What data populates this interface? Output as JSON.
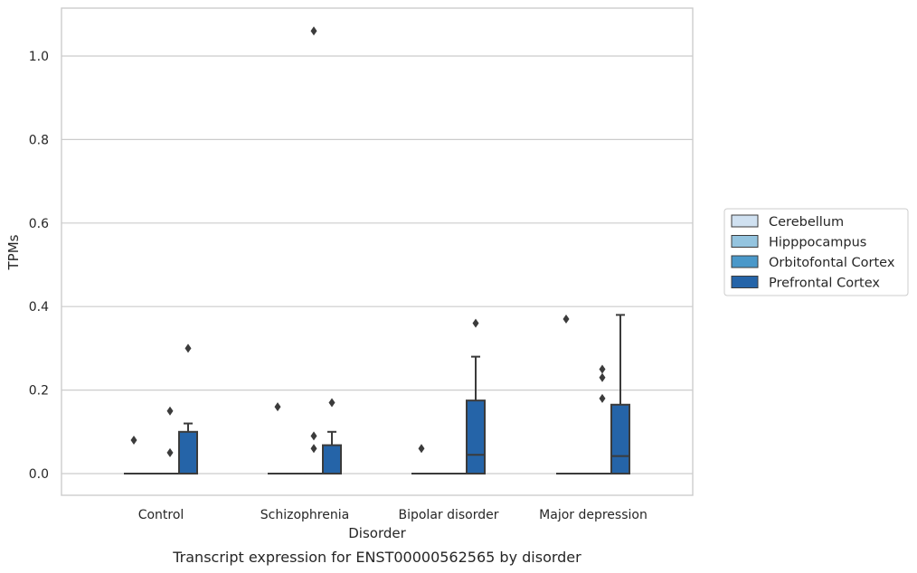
{
  "chart_data": {
    "type": "box",
    "caption": "Transcript expression for ENST00000562565 by disorder",
    "xlabel": "Disorder",
    "ylabel": "TPMs",
    "ylim": [
      -0.05,
      1.12
    ],
    "yticks": [
      0.0,
      0.2,
      0.4,
      0.6,
      0.8,
      1.0
    ],
    "ytick_labels": [
      "0.0",
      "0.2",
      "0.4",
      "0.6",
      "0.8",
      "1.0"
    ],
    "categories": [
      "Control",
      "Schizophrenia",
      "Bipolar disorder",
      "Major depression"
    ],
    "grid": "horizontal",
    "legend_position": "right",
    "series": [
      {
        "name": "Cerebellum",
        "color": "#d0e1f1",
        "boxes": [
          {
            "q1": 0,
            "median": 0,
            "q3": 0,
            "whisker_low": 0,
            "whisker_high": 0,
            "outliers": [
              0.08
            ]
          },
          {
            "q1": 0,
            "median": 0,
            "q3": 0,
            "whisker_low": 0,
            "whisker_high": 0,
            "outliers": [
              0.16
            ]
          },
          {
            "q1": 0,
            "median": 0,
            "q3": 0,
            "whisker_low": 0,
            "whisker_high": 0,
            "outliers": [
              0.06
            ]
          },
          {
            "q1": 0,
            "median": 0,
            "q3": 0,
            "whisker_low": 0,
            "whisker_high": 0,
            "outliers": [
              0.37
            ]
          }
        ]
      },
      {
        "name": "Hipppocampus",
        "color": "#94c4df",
        "boxes": [
          {
            "q1": 0,
            "median": 0,
            "q3": 0,
            "whisker_low": 0,
            "whisker_high": 0,
            "outliers": []
          },
          {
            "q1": 0,
            "median": 0,
            "q3": 0,
            "whisker_low": 0,
            "whisker_high": 0,
            "outliers": []
          },
          {
            "q1": 0,
            "median": 0,
            "q3": 0,
            "whisker_low": 0,
            "whisker_high": 0,
            "outliers": []
          },
          {
            "q1": 0,
            "median": 0,
            "q3": 0,
            "whisker_low": 0,
            "whisker_high": 0,
            "outliers": []
          }
        ]
      },
      {
        "name": "Orbitofontal Cortex",
        "color": "#4a98c9",
        "boxes": [
          {
            "q1": 0,
            "median": 0,
            "q3": 0,
            "whisker_low": 0,
            "whisker_high": 0,
            "outliers": [
              0.05,
              0.15
            ]
          },
          {
            "q1": 0,
            "median": 0,
            "q3": 0,
            "whisker_low": 0,
            "whisker_high": 0,
            "outliers": [
              0.06,
              0.09,
              1.06
            ]
          },
          {
            "q1": 0,
            "median": 0,
            "q3": 0,
            "whisker_low": 0,
            "whisker_high": 0,
            "outliers": []
          },
          {
            "q1": 0,
            "median": 0,
            "q3": 0,
            "whisker_low": 0,
            "whisker_high": 0,
            "outliers": [
              0.18,
              0.23,
              0.25
            ]
          }
        ]
      },
      {
        "name": "Prefrontal Cortex",
        "color": "#2564a8",
        "boxes": [
          {
            "q1": 0,
            "median": 0,
            "q3": 0.1,
            "whisker_low": 0,
            "whisker_high": 0.12,
            "outliers": [
              0.3
            ]
          },
          {
            "q1": 0,
            "median": 0,
            "q3": 0.068,
            "whisker_low": 0,
            "whisker_high": 0.1,
            "outliers": [
              0.17
            ]
          },
          {
            "q1": 0,
            "median": 0.045,
            "q3": 0.175,
            "whisker_low": 0,
            "whisker_high": 0.28,
            "outliers": [
              0.36
            ]
          },
          {
            "q1": 0,
            "median": 0.042,
            "q3": 0.165,
            "whisker_low": 0,
            "whisker_high": 0.38,
            "outliers": []
          }
        ]
      }
    ]
  }
}
